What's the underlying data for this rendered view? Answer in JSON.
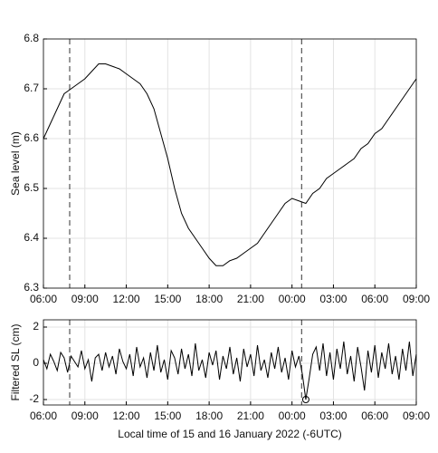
{
  "chart_data": [
    {
      "type": "line",
      "ylabel": "Sea level (m)",
      "color": "#000000",
      "grid": true,
      "xlim": [
        0,
        27
      ],
      "ylim": [
        6.3,
        6.8
      ],
      "xticks": [
        {
          "value": 0,
          "label": "06:00"
        },
        {
          "value": 3,
          "label": "09:00"
        },
        {
          "value": 6,
          "label": "12:00"
        },
        {
          "value": 9,
          "label": "15:00"
        },
        {
          "value": 12,
          "label": "18:00"
        },
        {
          "value": 15,
          "label": "21:00"
        },
        {
          "value": 18,
          "label": "00:00"
        },
        {
          "value": 21,
          "label": "03:00"
        },
        {
          "value": 24,
          "label": "06:00"
        },
        {
          "value": 27,
          "label": "09:00"
        }
      ],
      "yticks": [
        6.3,
        6.4,
        6.5,
        6.6,
        6.7,
        6.8
      ],
      "vlines": [
        1.9,
        18.7
      ],
      "x": [
        0,
        0.5,
        1,
        1.5,
        2,
        2.5,
        3,
        3.5,
        4,
        4.5,
        5,
        5.5,
        6,
        6.5,
        7,
        7.5,
        8,
        8.5,
        9,
        9.5,
        10,
        10.5,
        11,
        11.5,
        12,
        12.5,
        13,
        13.5,
        14,
        14.5,
        15,
        15.5,
        16,
        16.5,
        17,
        17.5,
        18,
        18.5,
        19,
        19.5,
        20,
        20.5,
        21,
        21.5,
        22,
        22.5,
        23,
        23.5,
        24,
        24.5,
        25,
        25.5,
        26,
        26.5,
        27
      ],
      "values": [
        6.6,
        6.63,
        6.66,
        6.69,
        6.7,
        6.71,
        6.72,
        6.735,
        6.75,
        6.75,
        6.745,
        6.74,
        6.73,
        6.72,
        6.71,
        6.69,
        6.66,
        6.61,
        6.56,
        6.5,
        6.45,
        6.42,
        6.4,
        6.38,
        6.36,
        6.345,
        6.345,
        6.355,
        6.36,
        6.37,
        6.38,
        6.39,
        6.41,
        6.43,
        6.45,
        6.47,
        6.48,
        6.475,
        6.47,
        6.49,
        6.5,
        6.52,
        6.53,
        6.54,
        6.55,
        6.56,
        6.58,
        6.59,
        6.61,
        6.62,
        6.64,
        6.66,
        6.68,
        6.7,
        6.72
      ]
    },
    {
      "type": "line",
      "ylabel": "Filtered SL (cm)",
      "xlabel": "Local time of 15 and 16 January 2022 (-6UTC)",
      "color": "#000000",
      "grid": true,
      "xlim": [
        0,
        27
      ],
      "ylim": [
        -2.3,
        2.4
      ],
      "xticks": [
        {
          "value": 0,
          "label": "06:00"
        },
        {
          "value": 3,
          "label": "09:00"
        },
        {
          "value": 6,
          "label": "12:00"
        },
        {
          "value": 9,
          "label": "15:00"
        },
        {
          "value": 12,
          "label": "18:00"
        },
        {
          "value": 15,
          "label": "21:00"
        },
        {
          "value": 18,
          "label": "00:00"
        },
        {
          "value": 21,
          "label": "03:00"
        },
        {
          "value": 24,
          "label": "06:00"
        },
        {
          "value": 27,
          "label": "09:00"
        }
      ],
      "yticks": [
        -2,
        0,
        2
      ],
      "vlines": [
        1.9,
        18.7
      ],
      "marker": {
        "x": 19,
        "y": -2
      },
      "x": [
        0,
        0.25,
        0.5,
        0.75,
        1,
        1.25,
        1.5,
        1.75,
        2,
        2.25,
        2.5,
        2.75,
        3,
        3.25,
        3.5,
        3.75,
        4,
        4.25,
        4.5,
        4.75,
        5,
        5.25,
        5.5,
        5.75,
        6,
        6.25,
        6.5,
        6.75,
        7,
        7.25,
        7.5,
        7.75,
        8,
        8.25,
        8.5,
        8.75,
        9,
        9.25,
        9.5,
        9.75,
        10,
        10.25,
        10.5,
        10.75,
        11,
        11.25,
        11.5,
        11.75,
        12,
        12.25,
        12.5,
        12.75,
        13,
        13.25,
        13.5,
        13.75,
        14,
        14.25,
        14.5,
        14.75,
        15,
        15.25,
        15.5,
        15.75,
        16,
        16.25,
        16.5,
        16.75,
        17,
        17.25,
        17.5,
        17.75,
        18,
        18.25,
        18.5,
        18.75,
        19,
        19.25,
        19.5,
        19.75,
        20,
        20.25,
        20.5,
        20.75,
        21,
        21.25,
        21.5,
        21.75,
        22,
        22.25,
        22.5,
        22.75,
        23,
        23.25,
        23.5,
        23.75,
        24,
        24.25,
        24.5,
        24.75,
        25,
        25.25,
        25.5,
        25.75,
        26,
        26.25,
        26.5,
        26.75,
        27
      ],
      "values": [
        0.2,
        -0.3,
        0.5,
        0.1,
        -0.4,
        0.6,
        0.3,
        -0.5,
        0.4,
        0.1,
        -0.2,
        0.7,
        -0.3,
        0.2,
        -1.0,
        0.3,
        0.5,
        -0.4,
        0.6,
        -0.2,
        0.4,
        -0.6,
        0.8,
        0.1,
        -0.3,
        0.5,
        -0.7,
        0.9,
        -0.2,
        0.3,
        -0.8,
        0.6,
        -0.4,
        1.0,
        -0.5,
        0.2,
        -0.9,
        0.7,
        0.3,
        -0.6,
        0.8,
        -0.3,
        0.5,
        -0.7,
        1.1,
        -0.4,
        0.2,
        -0.8,
        0.6,
        -0.1,
        0.7,
        -0.9,
        0.4,
        -0.3,
        0.9,
        -0.6,
        0.3,
        -1.0,
        0.8,
        -0.2,
        0.5,
        -0.7,
        1.0,
        -0.4,
        0.2,
        -0.8,
        0.6,
        -0.3,
        0.9,
        -0.5,
        0.3,
        -0.9,
        0.7,
        -0.2,
        0.4,
        -0.6,
        -2.0,
        -0.8,
        0.5,
        0.9,
        -0.4,
        1.1,
        -0.7,
        0.6,
        -0.9,
        0.8,
        -0.3,
        1.2,
        -0.6,
        0.4,
        -1.0,
        0.9,
        -0.2,
        -1.5,
        0.7,
        -0.5,
        1.0,
        -0.8,
        0.6,
        -0.3,
        1.1,
        -0.6,
        0.4,
        -0.9,
        0.8,
        -0.4,
        1.2,
        -0.7,
        0.5
      ]
    }
  ]
}
